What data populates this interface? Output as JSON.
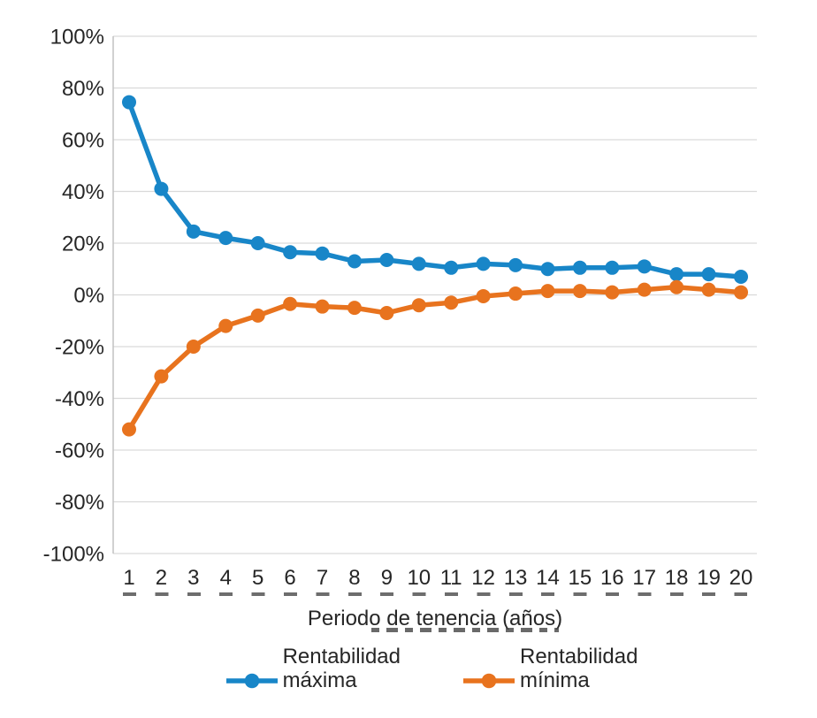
{
  "chart_data": {
    "type": "line",
    "title": "",
    "xlabel": "Periodo de tenencia (años)",
    "ylabel": "",
    "x": [
      1,
      2,
      3,
      4,
      5,
      6,
      7,
      8,
      9,
      10,
      11,
      12,
      13,
      14,
      15,
      16,
      17,
      18,
      19,
      20
    ],
    "xtick_labels": [
      "1",
      "2",
      "3",
      "4",
      "5",
      "6",
      "7",
      "8",
      "9",
      "10",
      "11",
      "12",
      "13",
      "14",
      "15",
      "16",
      "17",
      "18",
      "19",
      "20"
    ],
    "ylim": [
      -100,
      100
    ],
    "ytick_step": 20,
    "ytick_labels": [
      "100%",
      "80%",
      "60%",
      "40%",
      "20%",
      "0%",
      "-20%",
      "-40%",
      "-60%",
      "-80%",
      "-100%"
    ],
    "grid": "horizontal",
    "legend_position": "bottom",
    "series": [
      {
        "name": "Rentabilidad máxima",
        "color": "#1886c8",
        "values": [
          74.5,
          41,
          24.5,
          22,
          20,
          16.5,
          16,
          13,
          13.5,
          12,
          10.5,
          12,
          11.5,
          10,
          10.5,
          10.5,
          11,
          8,
          8,
          7
        ]
      },
      {
        "name": "Rentabilidad mínima",
        "color": "#e8731e",
        "values": [
          -52,
          -31.5,
          -20,
          -12,
          -8,
          -3.5,
          -4.5,
          -5,
          -7,
          -4,
          -3,
          -0.5,
          0.5,
          1.5,
          1.5,
          1,
          2,
          3,
          2,
          1
        ]
      }
    ],
    "legend": [
      {
        "line1": "Rentabilidad",
        "line2": "máxima"
      },
      {
        "line1": "Rentabilidad",
        "line2": "mínima"
      }
    ]
  },
  "colors": {
    "grid": "#d9d9d9",
    "axis": "#c2c2c2",
    "text": "#262626",
    "background": "#ffffff"
  }
}
